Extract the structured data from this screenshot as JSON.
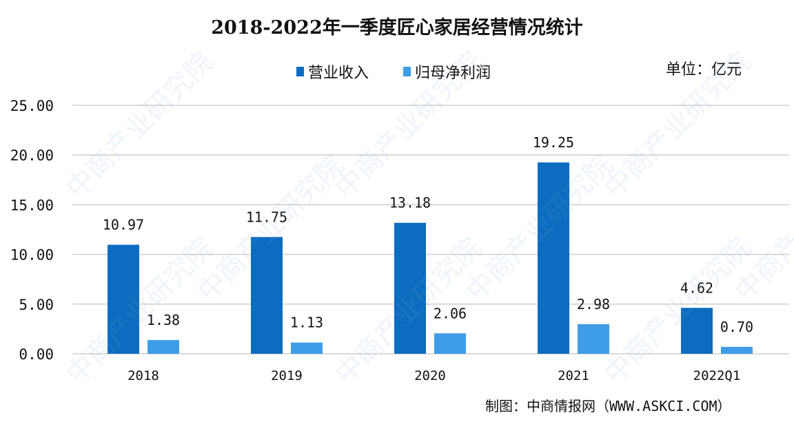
{
  "chart_data": {
    "type": "bar",
    "title": "2018-2022年一季度匠心家居经营情况统计",
    "unit_label": "单位：亿元",
    "categories": [
      "2018",
      "2019",
      "2020",
      "2021",
      "2022Q1"
    ],
    "series": [
      {
        "name": "营业收入",
        "values": [
          10.97,
          11.75,
          13.18,
          19.25,
          4.62
        ],
        "labels": [
          "10.97",
          "11.75",
          "13.18",
          "19.25",
          "4.62"
        ],
        "color": "#0b6cc0"
      },
      {
        "name": "归母净利润",
        "values": [
          1.38,
          1.13,
          2.06,
          2.98,
          0.7
        ],
        "labels": [
          "1.38",
          "1.13",
          "2.06",
          "2.98",
          "0.70"
        ],
        "color": "#3f9de8"
      }
    ],
    "ylim": [
      0,
      25
    ],
    "yticks": [
      "0.00",
      "5.00",
      "10.00",
      "15.00",
      "20.00",
      "25.00"
    ],
    "grid": true,
    "legend_position": "top"
  },
  "source": "制图：中商情报网（WWW.ASKCI.COM）",
  "watermark": "中商产业研究院"
}
